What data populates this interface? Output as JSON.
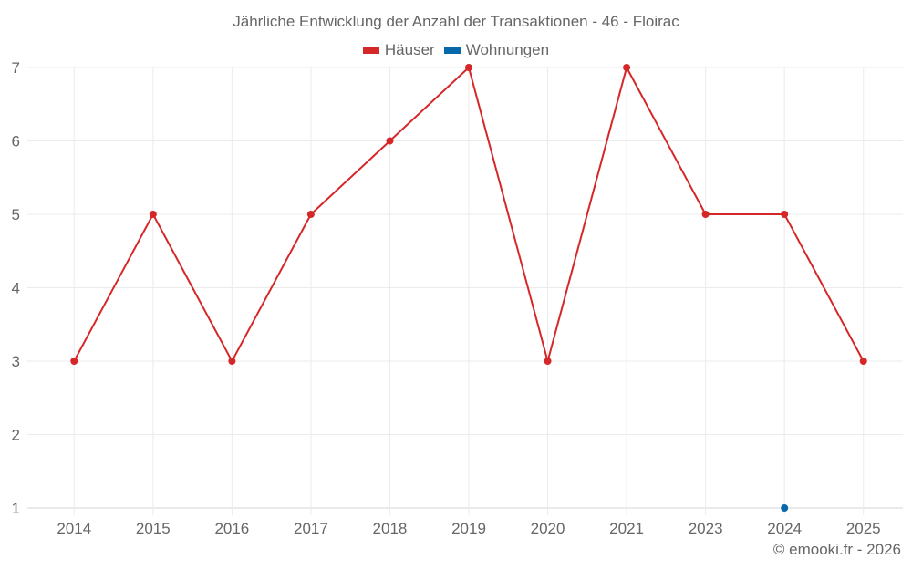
{
  "chart_data": {
    "type": "line",
    "title": "Jährliche Entwicklung der Anzahl der Transaktionen - 46 - Floirac",
    "xlabel": "",
    "ylabel": "",
    "categories": [
      "2014",
      "2015",
      "2016",
      "2017",
      "2018",
      "2019",
      "2020",
      "2021",
      "2023",
      "2024",
      "2025"
    ],
    "series": [
      {
        "name": "Häuser",
        "color": "#d62728",
        "values": [
          3,
          5,
          3,
          5,
          6,
          7,
          3,
          7,
          5,
          5,
          3
        ]
      },
      {
        "name": "Wohnungen",
        "color": "#0868ac",
        "values": [
          null,
          null,
          null,
          null,
          null,
          null,
          null,
          null,
          null,
          1,
          null
        ]
      }
    ],
    "yticks": [
      1,
      2,
      3,
      4,
      5,
      6,
      7
    ],
    "ylim": [
      1,
      7
    ],
    "grid": true,
    "legend_position": "top"
  },
  "legend": {
    "items": [
      {
        "label": "Häuser",
        "color": "#d62728"
      },
      {
        "label": "Wohnungen",
        "color": "#0868ac"
      }
    ]
  },
  "credit": "© emooki.fr - 2026"
}
